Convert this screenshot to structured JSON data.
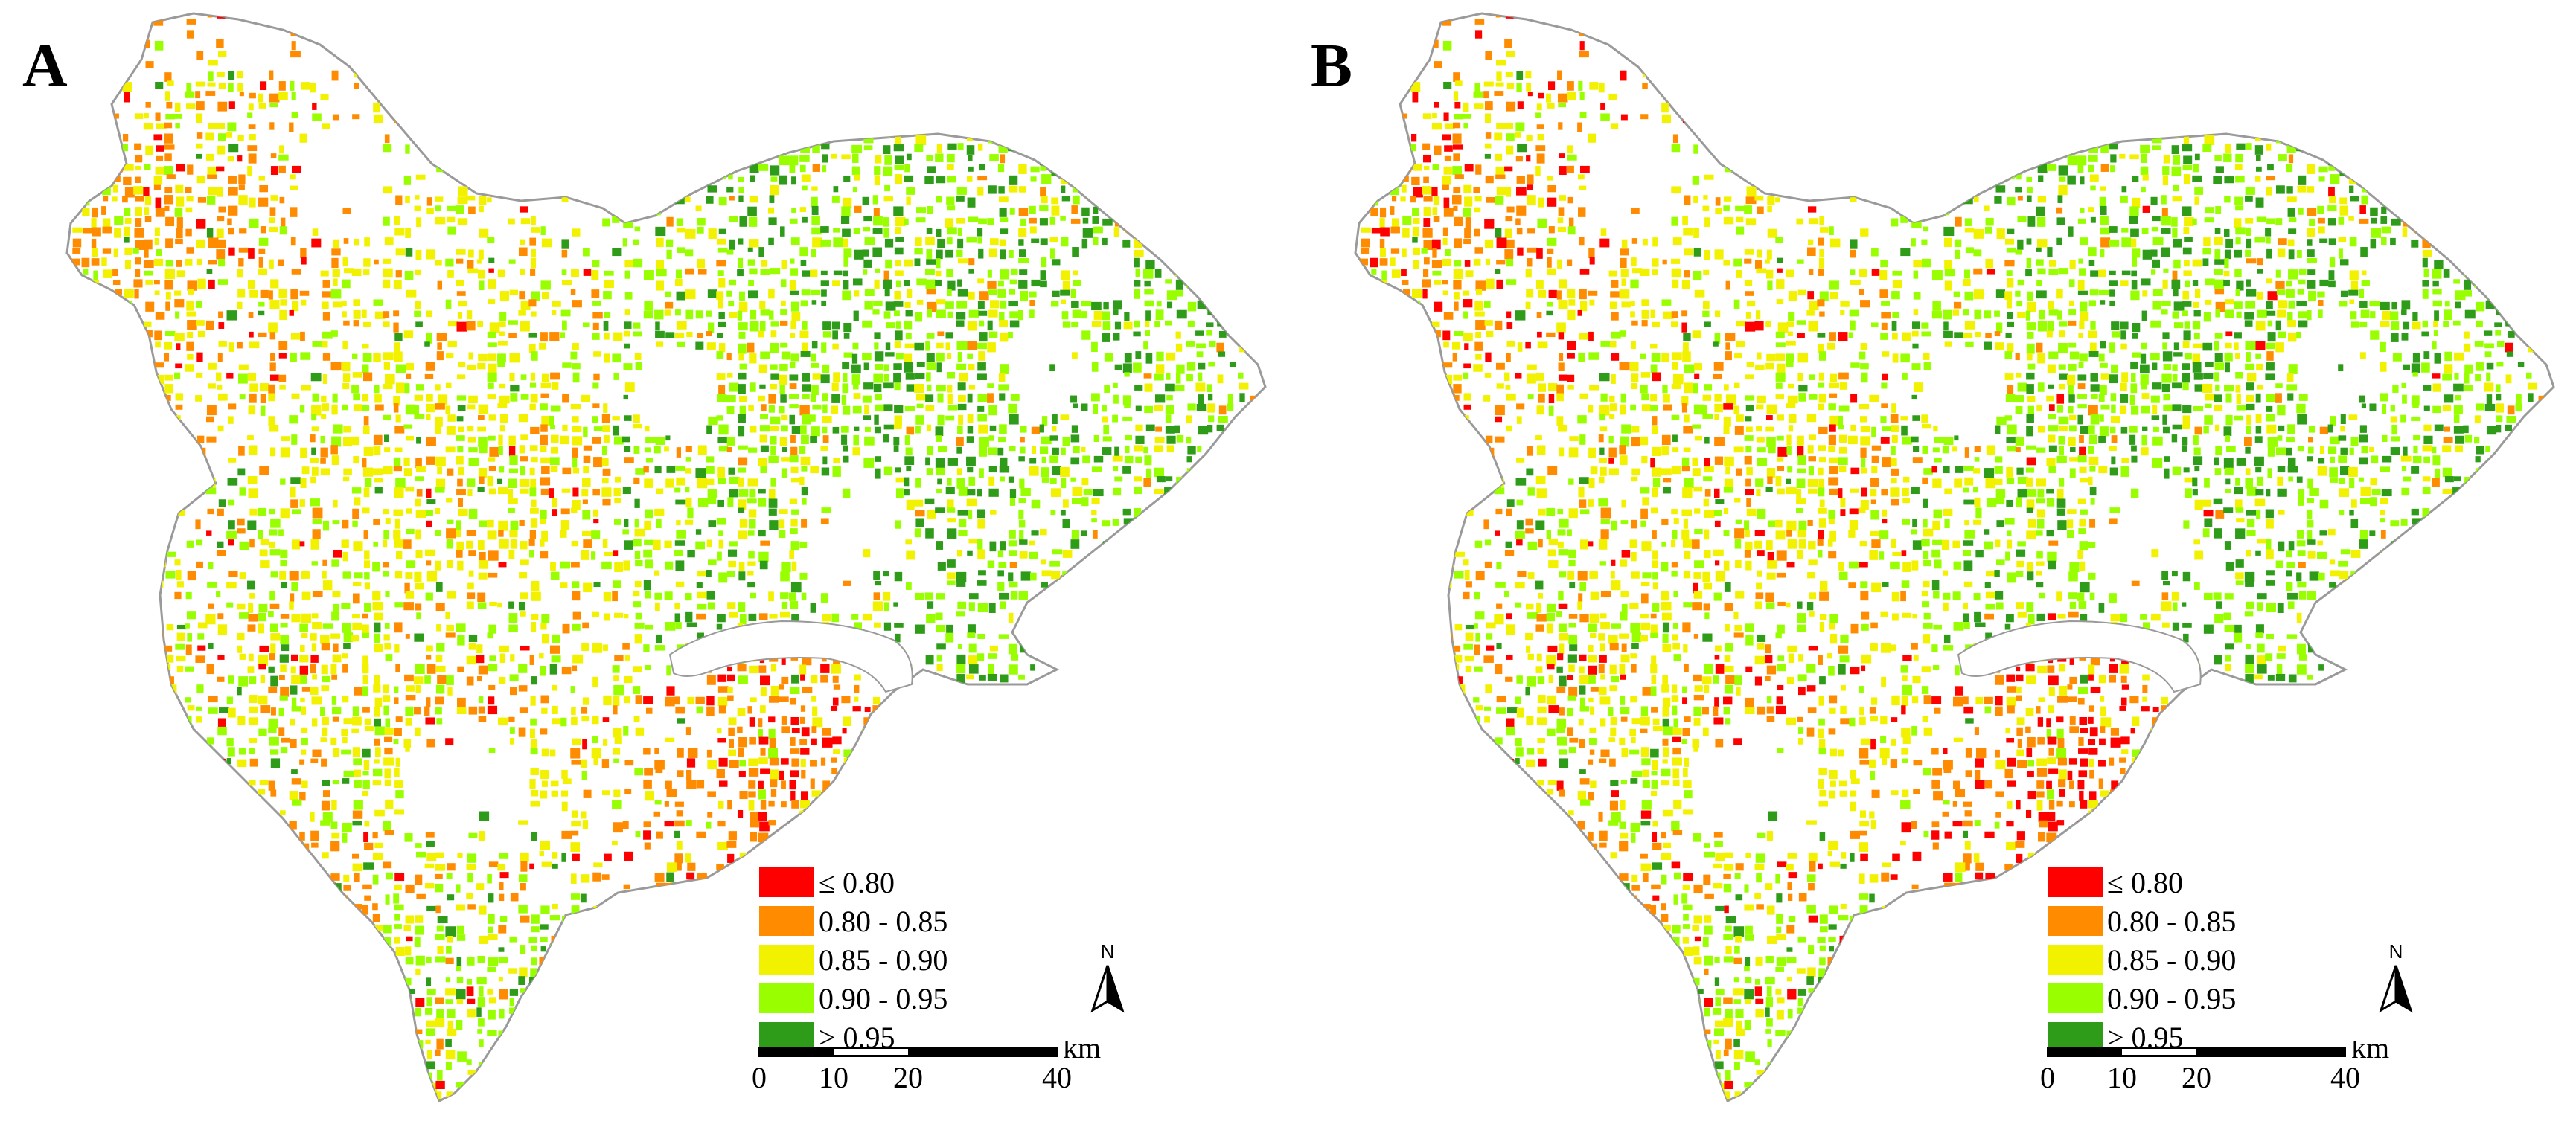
{
  "panels": [
    {
      "label": "A"
    },
    {
      "label": "B"
    }
  ],
  "legend": {
    "classes": [
      {
        "label": "≤ 0.80",
        "color": "#ff0000"
      },
      {
        "label": "0.80 - 0.85",
        "color": "#ff8c00"
      },
      {
        "label": "0.85 - 0.90",
        "color": "#f2f200"
      },
      {
        "label": "0.90 - 0.95",
        "color": "#99ff00"
      },
      {
        "label": "> 0.95",
        "color": "#2e9c18"
      }
    ]
  },
  "north_arrow": {
    "label": "N"
  },
  "scale_bar": {
    "ticks": [
      "0",
      "10",
      "20",
      "40"
    ],
    "unit": "km"
  },
  "colors": {
    "boundary": "#9a9a9a",
    "river": "#ffffff"
  }
}
